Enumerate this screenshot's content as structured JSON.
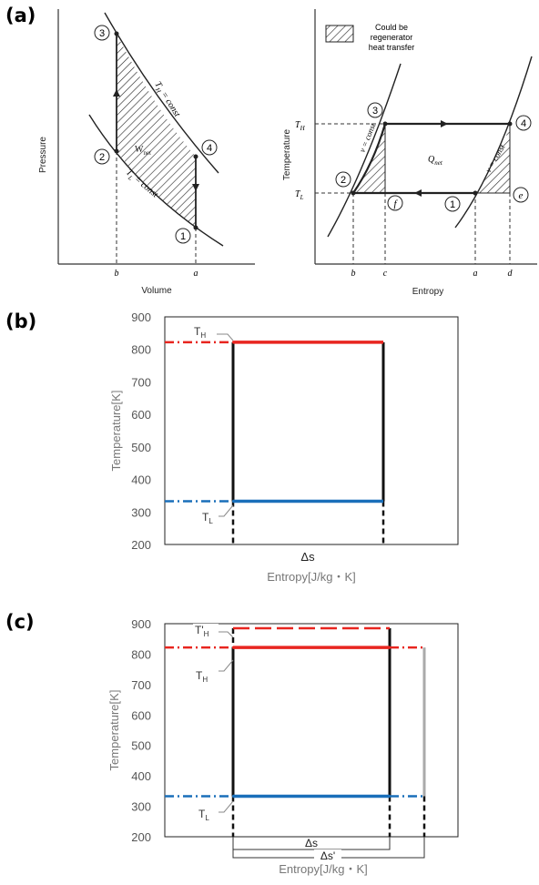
{
  "panels": {
    "a": {
      "label": "(a)",
      "pv": {
        "ylabel": "Pressure",
        "xlabel": "Volume",
        "x_ticks": [
          "b",
          "a"
        ],
        "states": [
          "1",
          "2",
          "3",
          "4"
        ],
        "curve_labels": {
          "th": "T",
          "th_sub": "H",
          "th_rest": " = const",
          "tl": "T",
          "tl_sub": "L",
          "tl_rest": " = const"
        },
        "area_label": "W",
        "area_sub": "net"
      },
      "ts": {
        "ylabel": "Temperature",
        "xlabel": "Entropy",
        "legend": "Could be regenerator heat transfer",
        "legend_lines": [
          "Could be",
          "regenerator",
          "heat transfer"
        ],
        "y_ticks": {
          "th": "T",
          "th_sub": "H",
          "tl": "T",
          "tl_sub": "L"
        },
        "x_ticks": [
          "b",
          "c",
          "a",
          "d"
        ],
        "states": [
          "1",
          "2",
          "3",
          "4"
        ],
        "extra_points": [
          "e",
          "f"
        ],
        "curve_label": "v = const",
        "area_label": "Q",
        "area_sub": "net"
      }
    },
    "b": {
      "label": "(b)",
      "chart_data": {
        "type": "line",
        "ylabel": "Temperature[K]",
        "xlabel": "Entropy[J/kg・K]",
        "y_ticks": [
          "900",
          "800",
          "700",
          "600",
          "500",
          "400",
          "300",
          "200"
        ],
        "ylim": [
          200,
          900
        ],
        "series": [
          {
            "name": "TH",
            "value": 822,
            "color": "#e8251f"
          },
          {
            "name": "TL",
            "value": 333,
            "color": "#1a6fba"
          }
        ],
        "annotations": {
          "th": "T",
          "th_sub": "H",
          "tl": "T",
          "tl_sub": "L",
          "ds": "Δs"
        }
      }
    },
    "c": {
      "label": "(c)",
      "chart_data": {
        "type": "line",
        "ylabel": "Temperature[K]",
        "xlabel": "Entropy[J/kg・K]",
        "y_ticks": [
          "900",
          "800",
          "700",
          "600",
          "500",
          "400",
          "300",
          "200"
        ],
        "ylim": [
          200,
          900
        ],
        "series": [
          {
            "name": "T'H",
            "value": 885,
            "color": "#e8251f"
          },
          {
            "name": "TH",
            "value": 822,
            "color": "#e8251f"
          },
          {
            "name": "TL",
            "value": 333,
            "color": "#1a6fba"
          }
        ],
        "annotations": {
          "thp": "T'",
          "thp_sub": "H",
          "th": "T",
          "th_sub": "H",
          "tl": "T",
          "tl_sub": "L",
          "ds": "Δs",
          "dsp": "Δs'"
        }
      }
    }
  }
}
